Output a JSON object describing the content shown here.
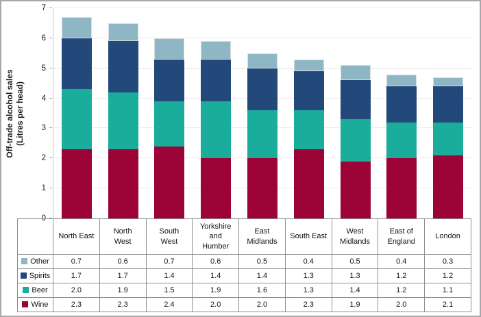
{
  "chart_data": {
    "type": "bar",
    "stacked": true,
    "title": "",
    "ylabel_line1": "Off-trade alcohol sales",
    "ylabel_line2": "(Litres per head)",
    "ylim": [
      0,
      7
    ],
    "yticks": [
      0,
      1,
      2,
      3,
      4,
      5,
      6,
      7
    ],
    "grid": true,
    "dashed_gridline_at": 5,
    "legend_position": "table-left",
    "categories": [
      "North East",
      "North West",
      "South West",
      "Yorkshire and Humber",
      "East Midlands",
      "South East",
      "West Midlands",
      "East of England",
      "London"
    ],
    "categories_display": [
      "North East",
      "North\nWest",
      "South\nWest",
      "Yorkshire\nand\nHumber",
      "East\nMidlands",
      "South East",
      "West\nMidlands",
      "East of\nEngland",
      "London"
    ],
    "series": [
      {
        "name": "Wine",
        "color": "#9c0437",
        "values": [
          2.3,
          2.3,
          2.4,
          2.0,
          2.0,
          2.3,
          1.9,
          2.0,
          2.1
        ]
      },
      {
        "name": "Beer",
        "color": "#1bad9b",
        "values": [
          2.0,
          1.9,
          1.5,
          1.9,
          1.6,
          1.3,
          1.4,
          1.2,
          1.1
        ]
      },
      {
        "name": "Spirits",
        "color": "#23497b",
        "values": [
          1.7,
          1.7,
          1.4,
          1.4,
          1.4,
          1.3,
          1.3,
          1.2,
          1.2
        ]
      },
      {
        "name": "Other",
        "color": "#8fb6c5",
        "border_color": "#d6dcdf",
        "values": [
          0.7,
          0.6,
          0.7,
          0.6,
          0.5,
          0.4,
          0.5,
          0.4,
          0.3
        ]
      }
    ],
    "table_legend_order": [
      "Other",
      "Spirits",
      "Beer",
      "Wine"
    ],
    "value_format_decimals": 1
  },
  "colors": {
    "frame_border": "#a5a8ab",
    "axis_line": "#a6a6a6",
    "gridline": "#ebebeb",
    "dashed_gridline": "#c2c2c2",
    "table_border": "#8d8d8d",
    "text": "#1a1a1a"
  }
}
